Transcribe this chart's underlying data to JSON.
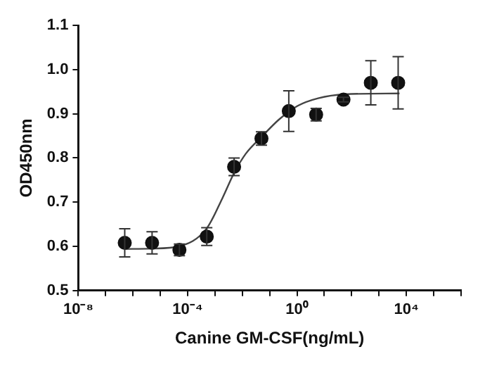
{
  "chart_data": {
    "type": "scatter",
    "xlabel": "Canine GM-CSF(ng/mL)",
    "ylabel": "OD450nm",
    "log": "x",
    "xlim": [
      1e-08,
      1000000.0
    ],
    "xticks": [
      {
        "value": 1e-08,
        "label": "10⁻⁸"
      },
      {
        "value": 1e-07,
        "label": null
      },
      {
        "value": 1e-06,
        "label": null
      },
      {
        "value": 1e-05,
        "label": null
      },
      {
        "value": 0.0001,
        "label": "10⁻⁴"
      },
      {
        "value": 0.001,
        "label": null
      },
      {
        "value": 0.01,
        "label": null
      },
      {
        "value": 0.1,
        "label": null
      },
      {
        "value": 1,
        "label": "10⁰"
      },
      {
        "value": 10,
        "label": null
      },
      {
        "value": 100,
        "label": null
      },
      {
        "value": 1000,
        "label": null
      },
      {
        "value": 10000,
        "label": "10⁴"
      },
      {
        "value": 100000,
        "label": null
      },
      {
        "value": 1000000,
        "label": null
      }
    ],
    "ylim": [
      0.5,
      1.1
    ],
    "yticks": [
      0.5,
      0.6,
      0.7,
      0.8,
      0.9,
      {
        "value": 1.0,
        "label": "1.0"
      },
      1.1
    ],
    "grid": false,
    "legend": false,
    "series": [
      {
        "color": "#111111",
        "marker": "circle",
        "x": [
          5e-07,
          5e-06,
          5e-05,
          0.0005,
          0.005,
          0.05,
          0.5,
          5,
          50,
          500,
          5000
        ],
        "values": [
          0.608,
          0.608,
          0.592,
          0.622,
          0.78,
          0.844,
          0.906,
          0.898,
          0.932,
          0.97,
          0.97
        ],
        "errors": [
          0.032,
          0.025,
          0.013,
          0.02,
          0.02,
          0.015,
          0.046,
          0.014,
          0.005,
          0.05,
          0.059
        ]
      },
      {
        "type": "line",
        "color": "#444444",
        "marker": "none",
        "x": [
          4.7e-07,
          5e-06,
          4.8e-05,
          0.00049,
          0.0019,
          0.0049,
          0.0135,
          0.055,
          0.22,
          1.07,
          5.9,
          55,
          5600
        ],
        "values": [
          0.594,
          0.595,
          0.6,
          0.64,
          0.71,
          0.765,
          0.81,
          0.85,
          0.887,
          0.918,
          0.935,
          0.944,
          0.946
        ]
      }
    ]
  }
}
